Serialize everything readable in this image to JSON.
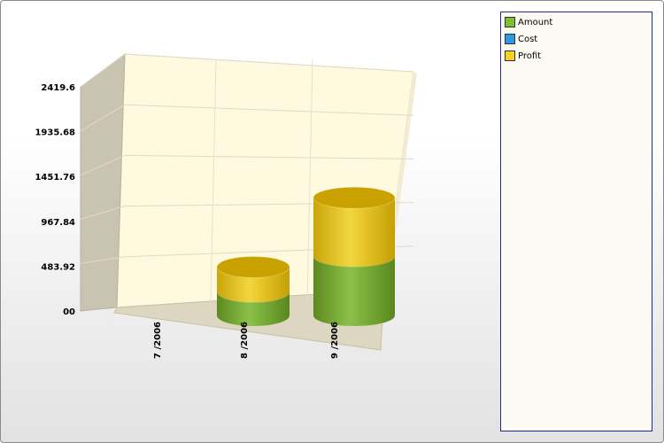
{
  "chart_data": {
    "type": "bar",
    "stacked": true,
    "style": "3d-cylinder",
    "categories": [
      "7 /2006",
      "8 /2006",
      "9 /2006"
    ],
    "series": [
      {
        "name": "Amount",
        "values": [
          0,
          260,
          650
        ]
      },
      {
        "name": "Cost",
        "values": [
          0,
          0,
          0
        ]
      },
      {
        "name": "Profit",
        "values": [
          0,
          270,
          640
        ]
      }
    ],
    "ytick_labels": [
      "00",
      "483.92",
      "967.84",
      "1451.76",
      "1935.68",
      "2419.6"
    ],
    "ylim": [
      0,
      2419.6
    ],
    "grid": true,
    "legend_position": "right"
  },
  "legend": {
    "items": [
      {
        "label": "Amount",
        "color": "#7cc230"
      },
      {
        "label": "Cost",
        "color": "#2b9be0"
      },
      {
        "label": "Profit",
        "color": "#f4d21f"
      }
    ]
  },
  "colors": {
    "amount_side": "#6f9e2a",
    "amount_top": "#5c8a22",
    "profit_side": "#e0be1a",
    "profit_top": "#c9a200",
    "wall_back": "#fff9e0",
    "wall_left": "#c9c3b2",
    "floor": "#ddd6c0"
  }
}
